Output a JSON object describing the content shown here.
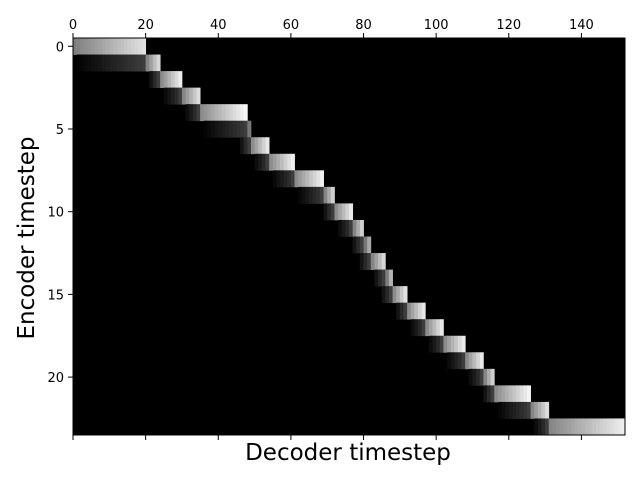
{
  "chart_data": {
    "type": "heatmap",
    "title": "",
    "xlabel": "Decoder timestep",
    "ylabel": "Encoder timestep",
    "x_range": [
      0,
      152
    ],
    "y_range": [
      0,
      24
    ],
    "x_ticks": [
      0,
      20,
      40,
      60,
      80,
      100,
      120,
      140
    ],
    "y_ticks": [
      0,
      5,
      10,
      15,
      20
    ],
    "x_tick_labels": [
      "0",
      "20",
      "40",
      "60",
      "80",
      "100",
      "120",
      "140"
    ],
    "y_tick_labels": [
      "0",
      "5",
      "10",
      "15",
      "20"
    ],
    "x_tick_position": "top",
    "colormap": "gray",
    "alignment_path": [
      {
        "row": 0,
        "start": 0,
        "end": 20,
        "peak": 0.9
      },
      {
        "row": 1,
        "start": 20,
        "end": 24,
        "peak": 0.95
      },
      {
        "row": 2,
        "start": 24,
        "end": 30,
        "peak": 1.0
      },
      {
        "row": 3,
        "start": 30,
        "end": 35,
        "peak": 0.95
      },
      {
        "row": 4,
        "start": 35,
        "end": 48,
        "peak": 1.0
      },
      {
        "row": 5,
        "start": 48,
        "end": 49,
        "peak": 0.85
      },
      {
        "row": 6,
        "start": 49,
        "end": 54,
        "peak": 1.0
      },
      {
        "row": 7,
        "start": 54,
        "end": 61,
        "peak": 1.0
      },
      {
        "row": 8,
        "start": 61,
        "end": 69,
        "peak": 1.0
      },
      {
        "row": 9,
        "start": 69,
        "end": 72,
        "peak": 0.95
      },
      {
        "row": 10,
        "start": 72,
        "end": 77,
        "peak": 1.0
      },
      {
        "row": 11,
        "start": 77,
        "end": 80,
        "peak": 0.95
      },
      {
        "row": 12,
        "start": 80,
        "end": 82,
        "peak": 0.85
      },
      {
        "row": 13,
        "start": 82,
        "end": 86,
        "peak": 0.95
      },
      {
        "row": 14,
        "start": 86,
        "end": 88,
        "peak": 0.9
      },
      {
        "row": 15,
        "start": 88,
        "end": 92,
        "peak": 1.0
      },
      {
        "row": 16,
        "start": 92,
        "end": 97,
        "peak": 1.0
      },
      {
        "row": 17,
        "start": 97,
        "end": 102,
        "peak": 1.0
      },
      {
        "row": 18,
        "start": 102,
        "end": 108,
        "peak": 1.0
      },
      {
        "row": 19,
        "start": 108,
        "end": 113,
        "peak": 1.0
      },
      {
        "row": 20,
        "start": 113,
        "end": 116,
        "peak": 0.95
      },
      {
        "row": 21,
        "start": 116,
        "end": 126,
        "peak": 1.0
      },
      {
        "row": 22,
        "start": 126,
        "end": 131,
        "peak": 0.95
      },
      {
        "row": 23,
        "start": 131,
        "end": 152,
        "peak": 0.95
      }
    ]
  }
}
